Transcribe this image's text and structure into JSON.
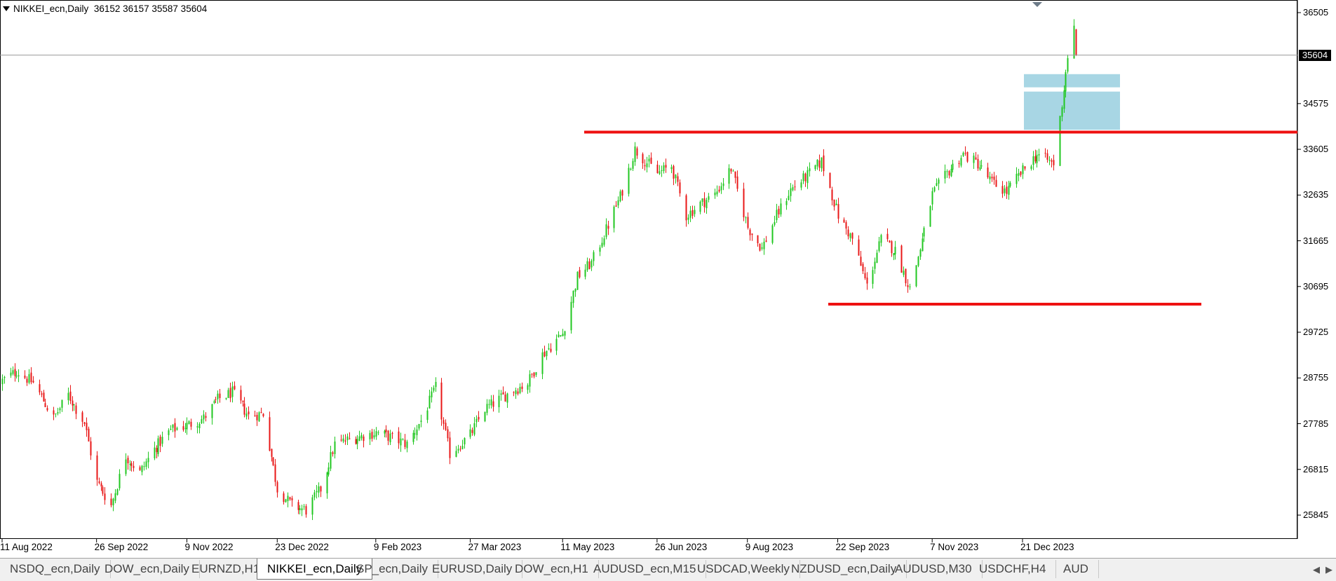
{
  "chart": {
    "symbol": "NIKKEI_ecn,Daily",
    "ohlc": "36152 36157 35587 35604",
    "current_price": "35604"
  },
  "price_axis": [
    "36505",
    "34575",
    "33605",
    "32635",
    "31665",
    "30695",
    "29725",
    "28755",
    "27785",
    "26815",
    "25845"
  ],
  "date_axis": [
    "11 Aug 2022",
    "26 Sep 2022",
    "9 Nov 2022",
    "23 Dec 2022",
    "9 Feb 2023",
    "27 Mar 2023",
    "11 May 2023",
    "26 Jun 2023",
    "9 Aug 2023",
    "22 Sep 2023",
    "7 Nov 2023",
    "21 Dec 2023"
  ],
  "colors": {
    "bull": "#21c721",
    "bear": "#e81717",
    "resistance_line": "#ee1111",
    "zone": "#a8d6e4",
    "grid_line": "#9a9a9a"
  },
  "tabs": [
    {
      "label": "NSDQ_ecn,Daily",
      "active": false
    },
    {
      "label": "DOW_ecn,Daily",
      "active": false
    },
    {
      "label": "EURNZD,H1",
      "active": false
    },
    {
      "label": "NIKKEI_ecn,Daily",
      "active": true
    },
    {
      "label": "SP_ecn,Daily",
      "active": false
    },
    {
      "label": "EURUSD,Daily",
      "active": false
    },
    {
      "label": "DOW_ecn,H1",
      "active": false
    },
    {
      "label": "AUDUSD_ecn,M15",
      "active": false
    },
    {
      "label": "USDCAD,Weekly",
      "active": false
    },
    {
      "label": "NZDUSD_ecn,Daily",
      "active": false
    },
    {
      "label": "AUDUSD,M30",
      "active": false
    },
    {
      "label": "USDCHF,H4",
      "active": false
    },
    {
      "label": "AUD",
      "active": false
    }
  ],
  "tab_scroll": {
    "left": "◀",
    "right": "▶"
  },
  "chart_data": {
    "type": "candlestick",
    "y_range": [
      25600,
      36700
    ],
    "resistance_level": 33970,
    "support_level": 30320,
    "current_price": 35604,
    "demand_zones": [
      [
        34920,
        35200
      ],
      [
        34020,
        34830
      ]
    ],
    "close_path": [
      [
        "11 Aug 2022",
        28700
      ],
      [
        "18 Aug 2022",
        28900
      ],
      [
        "26 Aug 2022",
        28650
      ],
      [
        "5 Sep 2022",
        27900
      ],
      [
        "12 Sep 2022",
        28400
      ],
      [
        "20 Sep 2022",
        27800
      ],
      [
        "26 Sep 2022",
        26550
      ],
      [
        "3 Oct 2022",
        26050
      ],
      [
        "10 Oct 2022",
        27100
      ],
      [
        "17 Oct 2022",
        26750
      ],
      [
        "24 Oct 2022",
        27250
      ],
      [
        "1 Nov 2022",
        27650
      ],
      [
        "9 Nov 2022",
        27750
      ],
      [
        "17 Nov 2022",
        27900
      ],
      [
        "24 Nov 2022",
        28300
      ],
      [
        "1 Dec 2022",
        28450
      ],
      [
        "9 Dec 2022",
        27950
      ],
      [
        "16 Dec 2022",
        28000
      ],
      [
        "23 Dec 2022",
        26400
      ],
      [
        "30 Dec 2022",
        26050
      ],
      [
        "6 Jan 2023",
        25950
      ],
      [
        "13 Jan 2023",
        26400
      ],
      [
        "20 Jan 2023",
        27350
      ],
      [
        "27 Jan 2023",
        27450
      ],
      [
        "9 Feb 2023",
        27600
      ],
      [
        "16 Feb 2023",
        27500
      ],
      [
        "24 Feb 2023",
        27350
      ],
      [
        "3 Mar 2023",
        27850
      ],
      [
        "10 Mar 2023",
        28550
      ],
      [
        "17 Mar 2023",
        27150
      ],
      [
        "27 Mar 2023",
        27550
      ],
      [
        "3 Apr 2023",
        28100
      ],
      [
        "10 Apr 2023",
        28300
      ],
      [
        "17 Apr 2023",
        28500
      ],
      [
        "24 Apr 2023",
        28650
      ],
      [
        "1 May 2023",
        29250
      ],
      [
        "11 May 2023",
        29700
      ],
      [
        "18 May 2023",
        30900
      ],
      [
        "25 May 2023",
        31200
      ],
      [
        "1 Jun 2023",
        31900
      ],
      [
        "8 Jun 2023",
        32600
      ],
      [
        "15 Jun 2023",
        33600
      ],
      [
        "26 Jun 2023",
        33100
      ],
      [
        "3 Jul 2023",
        33250
      ],
      [
        "10 Jul 2023",
        32200
      ],
      [
        "17 Jul 2023",
        32450
      ],
      [
        "24 Jul 2023",
        32650
      ],
      [
        "1 Aug 2023",
        33200
      ],
      [
        "9 Aug 2023",
        31950
      ],
      [
        "16 Aug 2023",
        31500
      ],
      [
        "23 Aug 2023",
        32200
      ],
      [
        "30 Aug 2023",
        32750
      ],
      [
        "7 Sep 2023",
        33050
      ],
      [
        "14 Sep 2023",
        33350
      ],
      [
        "22 Sep 2023",
        32200
      ],
      [
        "29 Sep 2023",
        31700
      ],
      [
        "6 Oct 2023",
        30700
      ],
      [
        "13 Oct 2023",
        31700
      ],
      [
        "20 Oct 2023",
        31450
      ],
      [
        "27 Oct 2023",
        30650
      ],
      [
        "3 Nov 2023",
        31850
      ],
      [
        "7 Nov 2023",
        32650
      ],
      [
        "15 Nov 2023",
        33150
      ],
      [
        "22 Nov 2023",
        33500
      ],
      [
        "29 Nov 2023",
        33300
      ],
      [
        "6 Dec 2023",
        32900
      ],
      [
        "13 Dec 2023",
        32700
      ],
      [
        "21 Dec 2023",
        33150
      ],
      [
        "28 Dec 2023",
        33500
      ],
      [
        "5 Jan 2024",
        33300
      ],
      [
        "10 Jan 2024",
        34900
      ],
      [
        "12 Jan 2024",
        35600
      ],
      [
        "15 Jan 2024",
        36150
      ],
      [
        "16 Jan 2024",
        35604
      ]
    ]
  }
}
